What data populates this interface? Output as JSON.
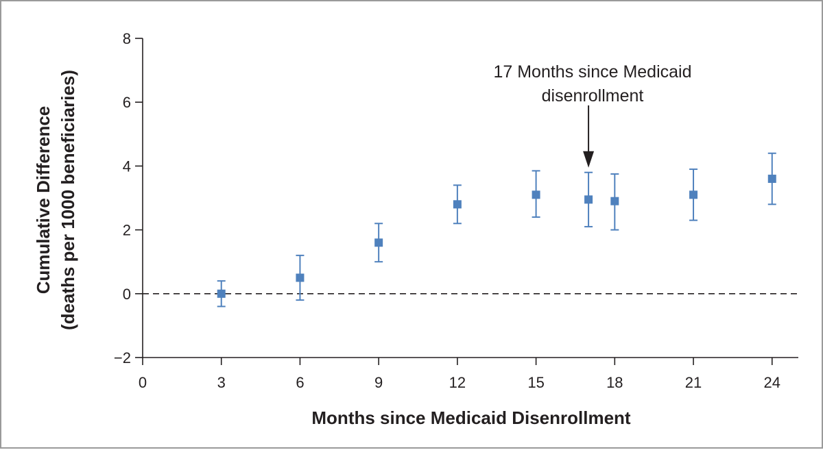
{
  "chart_data": {
    "type": "scatter",
    "title": "",
    "xlabel": "Months since Medicaid Disenrollment",
    "ylabel_line1": "Cumulative Difference",
    "ylabel_line2": "(deaths per 1000 beneficiaries)",
    "xlim": [
      0,
      25
    ],
    "ylim": [
      -2,
      8
    ],
    "xticks": [
      0,
      3,
      6,
      9,
      12,
      15,
      18,
      21,
      24
    ],
    "xtick_labels": [
      "0",
      "3",
      "6",
      "9",
      "12",
      "15",
      "18",
      "21",
      "24"
    ],
    "yticks": [
      -2,
      0,
      2,
      4,
      6,
      8
    ],
    "ytick_labels": [
      "−2",
      "0",
      "2",
      "4",
      "6",
      "8"
    ],
    "reference_line_y": 0,
    "series": [
      {
        "name": "Cumulative difference",
        "color": "#4f81bd",
        "x": [
          3,
          6,
          9,
          12,
          15,
          17,
          18,
          21,
          24
        ],
        "y": [
          0.0,
          0.5,
          1.6,
          2.8,
          3.1,
          2.95,
          2.9,
          3.1,
          3.6
        ],
        "lower": [
          -0.4,
          -0.2,
          1.0,
          2.2,
          2.4,
          2.1,
          2.0,
          2.3,
          2.8
        ],
        "upper": [
          0.4,
          1.2,
          2.2,
          3.4,
          3.85,
          3.8,
          3.75,
          3.9,
          4.4
        ]
      }
    ],
    "annotation": {
      "line1": "17 Months since Medicaid",
      "line2": "disenrollment",
      "x": 17,
      "arrow_from_y": 5.9,
      "arrow_to_y": 3.95
    }
  }
}
